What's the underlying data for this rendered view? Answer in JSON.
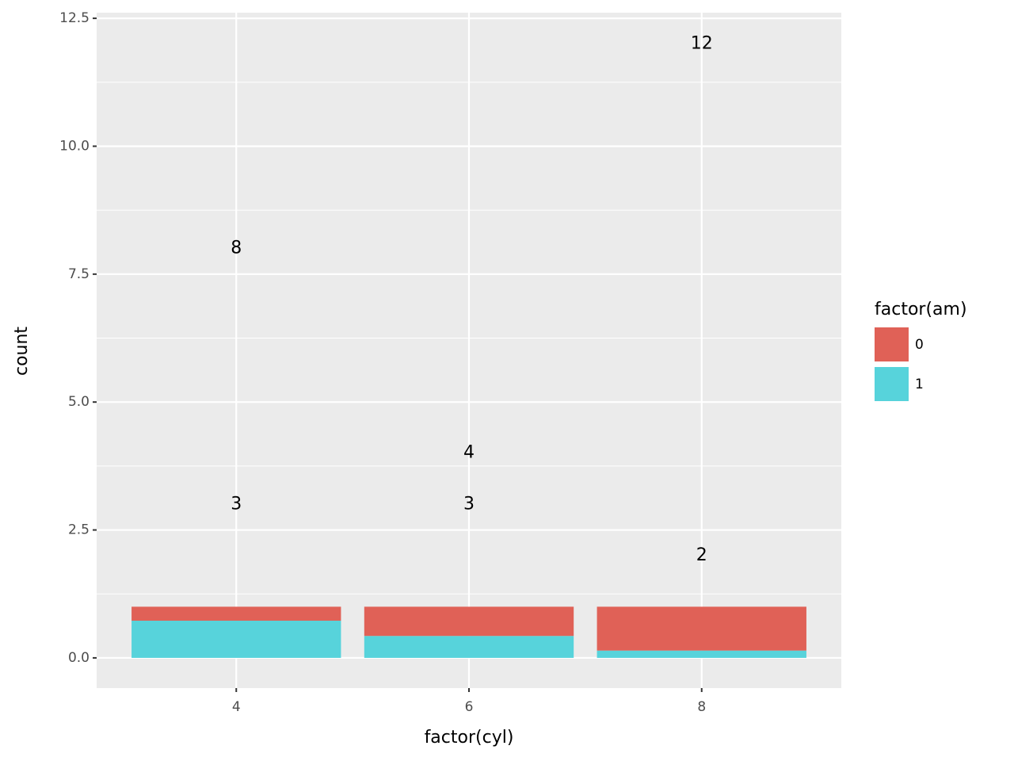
{
  "chart_data": {
    "type": "bar",
    "stacked": true,
    "x_label": "factor(cyl)",
    "y_label": "count",
    "categories": [
      "4",
      "6",
      "8"
    ],
    "series": [
      {
        "name": "0",
        "color": "#e06157",
        "values": [
          0.273,
          0.571,
          0.857
        ]
      },
      {
        "name": "1",
        "color": "#57d3db",
        "values": [
          0.727,
          0.429,
          0.143
        ]
      }
    ],
    "stack_order": [
      1,
      0
    ],
    "legend_title": "factor(am)",
    "text_labels": [
      {
        "category": 0,
        "value": 8
      },
      {
        "category": 0,
        "value": 3
      },
      {
        "category": 1,
        "value": 4
      },
      {
        "category": 1,
        "value": 3
      },
      {
        "category": 2,
        "value": 12
      },
      {
        "category": 2,
        "value": 2
      }
    ],
    "ylim": [
      -0.59,
      12.61
    ],
    "yticks": [
      {
        "value": 0,
        "label": "0.0"
      },
      2.5,
      {
        "value": 5,
        "label": "5.0"
      },
      7.5,
      {
        "value": 10,
        "label": "10.0"
      },
      12.5
    ],
    "grid": true,
    "legend": "right"
  }
}
